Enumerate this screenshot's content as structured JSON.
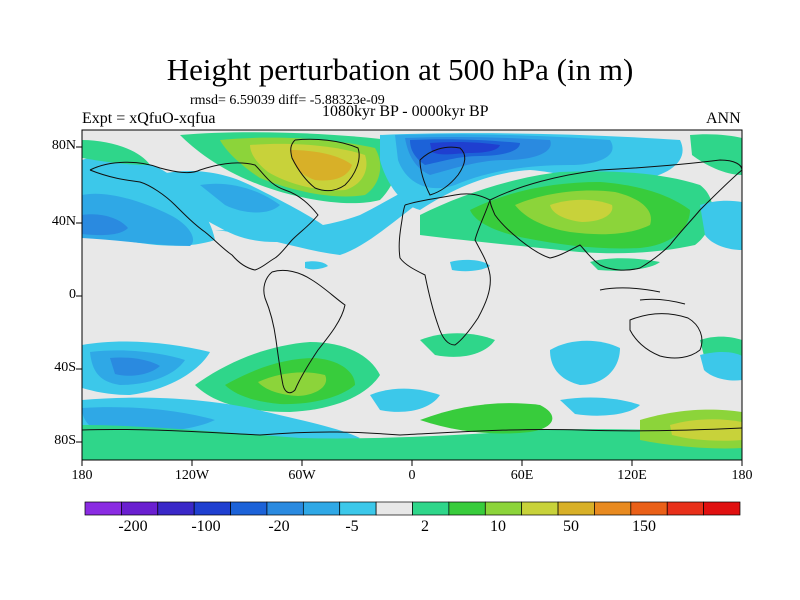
{
  "title": "Height perturbation at 500 hPa (in m)",
  "subtitle_stats": "rmsd= 6.59039 diff= -5.88323e-09",
  "experiment": "Expt = xQfuO-xqfua",
  "period": "1080kyr BP - 0000kyr BP",
  "season": "ANN",
  "map": {
    "y_axis_labels": [
      "80N",
      "40N",
      "0",
      "40S",
      "80S"
    ],
    "x_axis_labels": [
      "180",
      "120W",
      "60W",
      "0",
      "60E",
      "120E",
      "180"
    ]
  },
  "colorbar": {
    "labels": [
      "-200",
      "-100",
      "-20",
      "-5",
      "2",
      "10",
      "50",
      "150"
    ],
    "colors": [
      "#8a2be2",
      "#6a1fd0",
      "#3a28c8",
      "#1f3fd0",
      "#1c62d8",
      "#2a8ae0",
      "#2fa8e6",
      "#3cc8ea",
      "#e8e8e8",
      "#2fd68a",
      "#38cc3c",
      "#8cd43a",
      "#c8d23a",
      "#d8b028",
      "#e88a20",
      "#ea6018",
      "#e8301a",
      "#e01010"
    ]
  },
  "colors": {
    "background": "#e8e8e8",
    "coast": "#111111"
  }
}
